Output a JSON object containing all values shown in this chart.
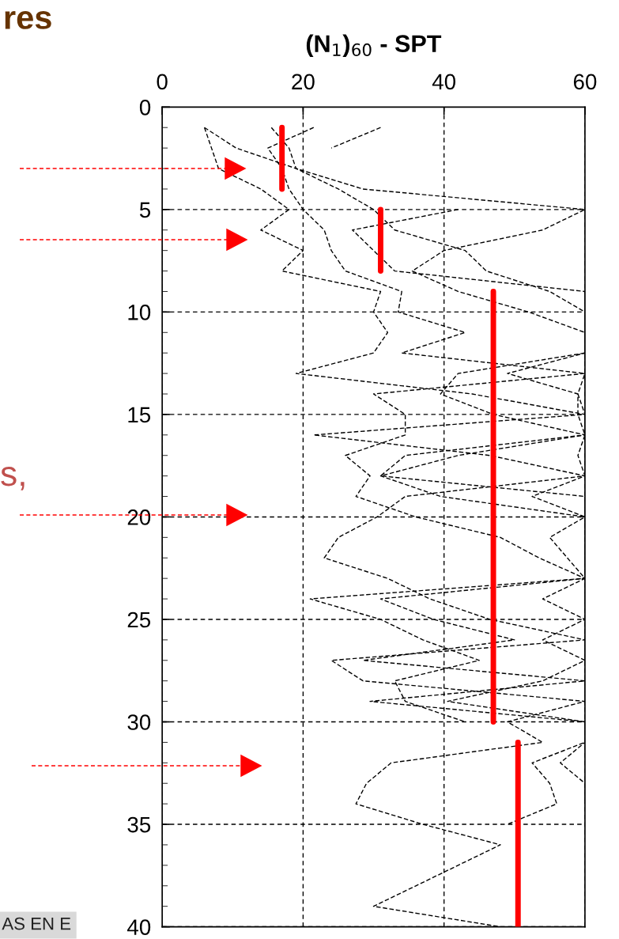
{
  "chart_data": {
    "type": "line",
    "title": "(N$_{1}$)$_{60}$ - SPT",
    "xlim": [
      0,
      60
    ],
    "xticks": [
      0,
      20,
      40,
      60
    ],
    "ylim": [
      40,
      0
    ],
    "yticks": [
      0,
      5,
      10,
      15,
      20,
      25,
      30,
      35,
      40
    ],
    "grid": true,
    "line_style": "dashed",
    "marker": "none",
    "annotations": [
      "res",
      "s,",
      "AS EN E"
    ],
    "series": [
      {
        "color": "#000000",
        "x": [
          6,
          10.5,
          19,
          25,
          30,
          33,
          43,
          46,
          55,
          60,
          60,
          60,
          49,
          59,
          59,
          60,
          59,
          60,
          52.5,
          60,
          55,
          57.5,
          60,
          54,
          60,
          54,
          60,
          54,
          40.5,
          60,
          60,
          52.5,
          55,
          56,
          49
        ],
        "values": [
          1,
          2,
          3,
          4,
          5,
          6,
          7,
          8,
          9,
          10,
          11,
          12,
          13,
          14,
          15,
          16,
          17,
          18,
          19,
          20,
          21,
          22,
          23,
          24,
          25,
          26,
          27,
          28,
          29,
          30,
          31,
          32,
          33,
          34,
          35
        ]
      },
      {
        "color": "#000000",
        "x": [
          6,
          7,
          8,
          14,
          18,
          14,
          20,
          17,
          31,
          30,
          32,
          30,
          19,
          44,
          60,
          21.5,
          46.5,
          60,
          34.5,
          30.5,
          25,
          23,
          32,
          38,
          46.5,
          60,
          24,
          28.5,
          60,
          49,
          54,
          32.5,
          29,
          27.5,
          37,
          48,
          42,
          36,
          30,
          48
        ],
        "values": [
          1,
          2,
          3,
          4,
          5,
          6,
          7,
          8,
          9,
          10,
          11,
          12,
          13,
          14,
          15,
          16,
          17,
          18,
          19,
          20,
          21,
          22,
          23,
          24,
          25,
          26,
          27,
          28,
          29,
          30,
          31,
          32,
          33,
          34,
          35,
          36,
          37,
          38,
          39,
          40
        ]
      },
      {
        "color": "#000000",
        "x": [
          21.5,
          15,
          17,
          18,
          20,
          23,
          24,
          26,
          34,
          33.5,
          43,
          34,
          60,
          30,
          34.5,
          34.5,
          26,
          29.5,
          27.5,
          36,
          48,
          53.5,
          60,
          21,
          31,
          37,
          45,
          33,
          34.5,
          43
        ],
        "values": [
          1,
          2,
          3,
          4,
          5,
          6,
          7,
          8,
          9,
          10,
          11,
          12,
          13,
          14,
          15,
          16,
          17,
          18,
          19,
          20,
          21,
          22,
          23,
          24,
          25,
          26,
          27,
          28,
          29,
          30
        ]
      },
      {
        "color": "#000000",
        "x": [
          31,
          24
        ],
        "values": [
          1,
          2
        ]
      },
      {
        "color": "#000000",
        "x": [
          15.5,
          18,
          19,
          28.5,
          60,
          54,
          40,
          35.5,
          42,
          52,
          60,
          60,
          42,
          39.5,
          47,
          60,
          42,
          31,
          39.5,
          60,
          60,
          60,
          60,
          31,
          38.5,
          50,
          28.5,
          60,
          29.5,
          60,
          60,
          56.5,
          60,
          60
        ],
        "values": [
          1,
          2,
          3,
          4,
          5,
          6,
          7,
          8,
          9,
          10,
          11,
          12,
          13,
          14,
          15,
          16,
          17,
          18,
          19,
          20,
          21,
          22,
          23,
          24,
          25,
          26,
          27,
          28,
          29,
          30,
          31,
          32,
          33,
          34
        ]
      },
      {
        "color": "#000000",
        "x": [
          42,
          27,
          30,
          33,
          60,
          60,
          60,
          60,
          60,
          59,
          60,
          60,
          34.5,
          31,
          60,
          60,
          60,
          60,
          60,
          60,
          60,
          60,
          60,
          60,
          60,
          60
        ],
        "values": [
          5,
          6,
          7,
          8,
          9,
          10,
          11,
          12,
          13,
          14,
          15,
          16,
          17,
          18,
          19,
          20,
          21,
          22,
          23,
          24,
          25,
          26,
          27,
          28,
          29,
          30
        ]
      },
      {
        "color": "#ff0000",
        "line_style": "solid",
        "x": [
          17,
          17
        ],
        "values": [
          1,
          4
        ]
      },
      {
        "color": "#ff0000",
        "line_style": "solid",
        "x": [
          31,
          31
        ],
        "values": [
          5,
          8
        ]
      },
      {
        "color": "#ff0000",
        "line_style": "solid",
        "x": [
          47,
          47
        ],
        "values": [
          9,
          30
        ]
      },
      {
        "color": "#ff0000",
        "line_style": "solid",
        "x": [
          50.5,
          50.5
        ],
        "values": [
          31,
          40
        ]
      }
    ]
  }
}
